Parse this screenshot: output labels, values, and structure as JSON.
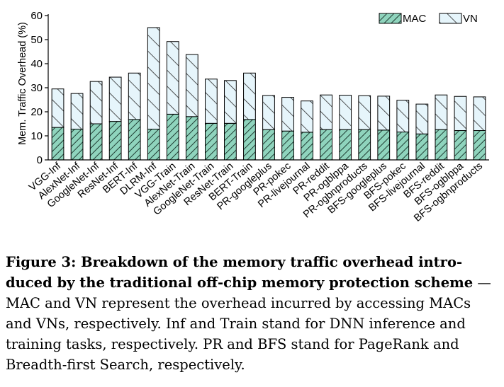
{
  "chart_data": {
    "type": "bar",
    "stacked": true,
    "ylabel": "Mem. Traffic Overhead (%)",
    "xlabel": "",
    "ylim": [
      0,
      60
    ],
    "yticks": [
      0,
      10,
      20,
      30,
      40,
      50,
      60
    ],
    "grid": false,
    "legend_position": "top-right",
    "categories": [
      "VGG-Inf",
      "AlexNet-Inf",
      "GoogleNet-Inf",
      "ResNet-Inf",
      "BERT-Inf",
      "DLRM-Inf",
      "VGG-Train",
      "AlexNet-Train",
      "GoogleNet-Train",
      "ResNet-Train",
      "BERT-Train",
      "PR-googleplus",
      "PR-pokec",
      "PR-livejournal",
      "PR-reddit",
      "PR-ogblppa",
      "PR-ogbnproducts",
      "BFS-googleplus",
      "BFS-pokec",
      "BFS-livejournal",
      "BFS-reddit",
      "BFS-ogblppa",
      "BFS-ogbnproducts"
    ],
    "series": [
      {
        "name": "MAC",
        "color": "#8fd4bd",
        "pattern": "diagonal-hatch",
        "values": [
          13.5,
          12.8,
          15.0,
          16.0,
          16.8,
          12.8,
          19.0,
          18.0,
          15.2,
          15.2,
          16.8,
          12.6,
          12.0,
          11.5,
          12.6,
          12.6,
          12.6,
          12.4,
          11.6,
          10.8,
          12.6,
          12.2,
          12.2
        ]
      },
      {
        "name": "VN",
        "color": "#e6f5fb",
        "pattern": "back-diagonal-hatch",
        "values": [
          16.0,
          14.8,
          17.6,
          18.4,
          19.3,
          42.2,
          30.2,
          25.8,
          18.4,
          17.8,
          19.3,
          14.2,
          14.0,
          13.0,
          14.4,
          14.3,
          14.1,
          14.1,
          13.2,
          12.4,
          14.4,
          14.2,
          14.0
        ]
      }
    ]
  },
  "caption": {
    "label": "Figure 3: Breakdown of the memory traffic overhead intro­duced by the traditional off-chip memory protection scheme",
    "text": " — MAC and VN represent the overhead incurred by accessing MACs and VNs, respectively. Inf and Train stand for DNN inference and training tasks, respectively. PR and BFS stand for PageRank and Breadth-first Search, respectively."
  }
}
